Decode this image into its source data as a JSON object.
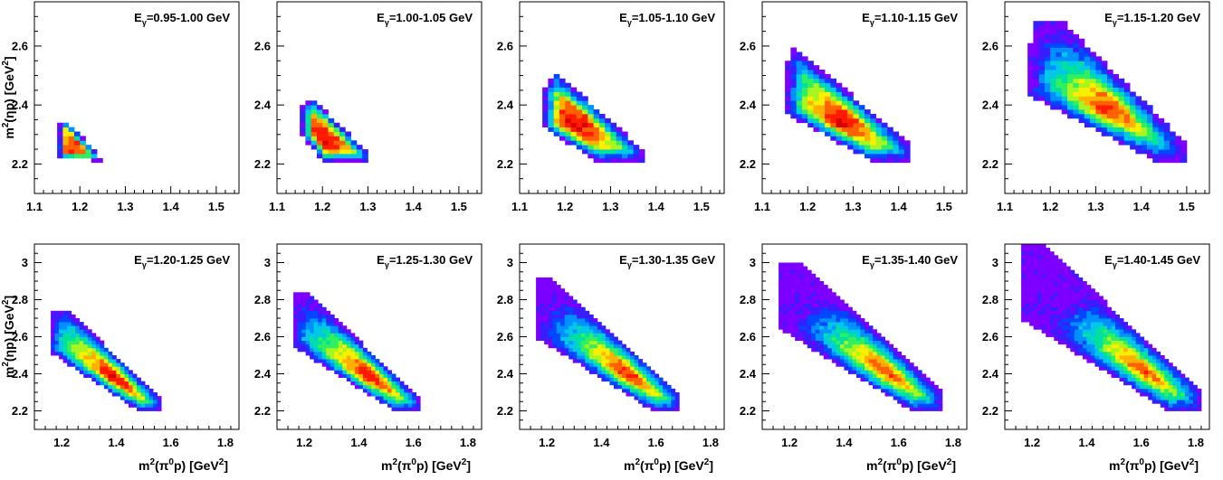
{
  "figure": {
    "colors": {
      "frame": "#000000",
      "background": "#ffffff"
    },
    "colormap": [
      "#7d00ff",
      "#3a1dff",
      "#0048ff",
      "#0090ff",
      "#00c8e6",
      "#00e0a0",
      "#30f060",
      "#a8f520",
      "#f8f000",
      "#ffb000",
      "#ff6000",
      "#ff1a00",
      "#d80000"
    ],
    "ylabel_parts": {
      "main": "m",
      "exp": "2",
      "mid": "(ηp)  [GeV",
      "unit_exp": "2",
      "end": "]"
    },
    "xlabel_parts": {
      "main": "m",
      "exp": "2",
      "mid": "(π",
      "sup0": "0",
      "mid2": "p)  [GeV",
      "unit_exp": "2",
      "end": "]"
    }
  },
  "chart_data": [
    {
      "type": "heatmap",
      "title": "Eγ=0.95-1.00 GeV",
      "label_parts": {
        "E": "E",
        "sub": "γ",
        "rest": "=0.95-1.00 GeV"
      },
      "xlim": [
        1.1,
        1.55
      ],
      "ylim": [
        2.1,
        2.75
      ],
      "xticks": [
        1.1,
        1.2,
        1.3,
        1.4,
        1.5
      ],
      "xtick_labels": [
        "1.1",
        "1.2",
        "1.3",
        "1.4",
        "1.5"
      ],
      "yticks": [
        2.2,
        2.4,
        2.6
      ],
      "ytick_labels": [
        "2.2",
        "2.4",
        "2.6"
      ],
      "x_axis_title": false,
      "y_axis_title": true,
      "region": {
        "peak_x": 1.165,
        "peak_y": 2.235,
        "bin_x": 0.0125,
        "bin_y": 0.015,
        "polygon": [
          [
            1.155,
            2.22
          ],
          [
            1.245,
            2.21
          ],
          [
            1.245,
            2.225
          ],
          [
            1.175,
            2.34
          ],
          [
            1.155,
            2.34
          ]
        ]
      }
    },
    {
      "type": "heatmap",
      "title": "Eγ=1.00-1.05 GeV",
      "label_parts": {
        "E": "E",
        "sub": "γ",
        "rest": "=1.00-1.05 GeV"
      },
      "xlim": [
        1.1,
        1.55
      ],
      "ylim": [
        2.1,
        2.75
      ],
      "xticks": [
        1.1,
        1.2,
        1.3,
        1.4,
        1.5
      ],
      "xtick_labels": [
        "1.1",
        "1.2",
        "1.3",
        "1.4",
        "1.5"
      ],
      "yticks": [
        2.2,
        2.4,
        2.6
      ],
      "ytick_labels": [
        "2.2",
        "2.4",
        "2.6"
      ],
      "x_axis_title": false,
      "y_axis_title": false,
      "region": {
        "peak_x": 1.2,
        "peak_y": 2.28,
        "bin_x": 0.0125,
        "bin_y": 0.015,
        "polygon": [
          [
            1.155,
            2.4
          ],
          [
            1.18,
            2.42
          ],
          [
            1.3,
            2.24
          ],
          [
            1.3,
            2.21
          ],
          [
            1.2,
            2.21
          ],
          [
            1.155,
            2.3
          ]
        ]
      }
    },
    {
      "type": "heatmap",
      "title": "Eγ=1.05-1.10 GeV",
      "label_parts": {
        "E": "E",
        "sub": "γ",
        "rest": "=1.05-1.10 GeV"
      },
      "xlim": [
        1.1,
        1.55
      ],
      "ylim": [
        2.1,
        2.75
      ],
      "xticks": [
        1.1,
        1.2,
        1.3,
        1.4,
        1.5
      ],
      "xtick_labels": [
        "1.1",
        "1.2",
        "1.3",
        "1.4",
        "1.5"
      ],
      "yticks": [
        2.2,
        2.4,
        2.6
      ],
      "ytick_labels": [
        "2.2",
        "2.4",
        "2.6"
      ],
      "x_axis_title": false,
      "y_axis_title": false,
      "region": {
        "peak_x": 1.22,
        "peak_y": 2.33,
        "bin_x": 0.0125,
        "bin_y": 0.015,
        "polygon": [
          [
            1.155,
            2.45
          ],
          [
            1.18,
            2.51
          ],
          [
            1.37,
            2.25
          ],
          [
            1.37,
            2.21
          ],
          [
            1.27,
            2.21
          ],
          [
            1.155,
            2.32
          ]
        ]
      }
    },
    {
      "type": "heatmap",
      "title": "Eγ=1.10-1.15 GeV",
      "label_parts": {
        "E": "E",
        "sub": "γ",
        "rest": "=1.10-1.15 GeV"
      },
      "xlim": [
        1.1,
        1.55
      ],
      "ylim": [
        2.1,
        2.75
      ],
      "xticks": [
        1.1,
        1.2,
        1.3,
        1.4,
        1.5
      ],
      "xtick_labels": [
        "1.1",
        "1.2",
        "1.3",
        "1.4",
        "1.5"
      ],
      "yticks": [
        2.2,
        2.4,
        2.6
      ],
      "ytick_labels": [
        "2.2",
        "2.4",
        "2.6"
      ],
      "x_axis_title": false,
      "y_axis_title": false,
      "region": {
        "peak_x": 1.27,
        "peak_y": 2.33,
        "bin_x": 0.0125,
        "bin_y": 0.015,
        "polygon": [
          [
            1.155,
            2.55
          ],
          [
            1.17,
            2.6
          ],
          [
            1.43,
            2.26
          ],
          [
            1.43,
            2.21
          ],
          [
            1.34,
            2.21
          ],
          [
            1.155,
            2.37
          ]
        ]
      }
    },
    {
      "type": "heatmap",
      "title": "Eγ=1.15-1.20 GeV",
      "label_parts": {
        "E": "E",
        "sub": "γ",
        "rest": "=1.15-1.20 GeV"
      },
      "xlim": [
        1.1,
        1.55
      ],
      "ylim": [
        2.1,
        2.75
      ],
      "xticks": [
        1.1,
        1.2,
        1.3,
        1.4,
        1.5
      ],
      "xtick_labels": [
        "1.1",
        "1.2",
        "1.3",
        "1.4",
        "1.5"
      ],
      "yticks": [
        2.2,
        2.4,
        2.6
      ],
      "ytick_labels": [
        "2.2",
        "2.4",
        "2.6"
      ],
      "x_axis_title": false,
      "y_axis_title": false,
      "region": {
        "peak_x": 1.32,
        "peak_y": 2.35,
        "bin_x": 0.0125,
        "bin_y": 0.015,
        "polygon": [
          [
            1.155,
            2.6
          ],
          [
            1.165,
            2.68
          ],
          [
            1.23,
            2.68
          ],
          [
            1.5,
            2.27
          ],
          [
            1.5,
            2.21
          ],
          [
            1.43,
            2.21
          ],
          [
            1.155,
            2.43
          ]
        ]
      }
    },
    {
      "type": "heatmap",
      "title": "Eγ=1.20-1.25 GeV",
      "label_parts": {
        "E": "E",
        "sub": "γ",
        "rest": "=1.20-1.25 GeV"
      },
      "xlim": [
        1.1,
        1.85
      ],
      "ylim": [
        2.1,
        3.1
      ],
      "xticks": [
        1.2,
        1.4,
        1.6,
        1.8
      ],
      "xtick_labels": [
        "1.2",
        "1.4",
        "1.6",
        "1.8"
      ],
      "yticks": [
        2.2,
        2.4,
        2.6,
        2.8,
        3.0
      ],
      "ytick_labels": [
        "2.2",
        "2.4",
        "2.6",
        "2.8",
        "3"
      ],
      "x_axis_title": true,
      "y_axis_title": true,
      "region": {
        "peak_x": 1.37,
        "peak_y": 2.35,
        "bin_x": 0.015,
        "bin_y": 0.02,
        "polygon": [
          [
            1.155,
            2.62
          ],
          [
            1.165,
            2.75
          ],
          [
            1.22,
            2.75
          ],
          [
            1.56,
            2.27
          ],
          [
            1.56,
            2.2
          ],
          [
            1.48,
            2.2
          ],
          [
            1.155,
            2.52
          ]
        ]
      }
    },
    {
      "type": "heatmap",
      "title": "Eγ=1.25-1.30 GeV",
      "label_parts": {
        "E": "E",
        "sub": "γ",
        "rest": "=1.25-1.30 GeV"
      },
      "xlim": [
        1.1,
        1.85
      ],
      "ylim": [
        2.1,
        3.1
      ],
      "xticks": [
        1.2,
        1.4,
        1.6,
        1.8
      ],
      "xtick_labels": [
        "1.2",
        "1.4",
        "1.6",
        "1.8"
      ],
      "yticks": [
        2.2,
        2.4,
        2.6,
        2.8,
        3.0
      ],
      "ytick_labels": [
        "2.2",
        "2.4",
        "2.6",
        "2.8",
        "3"
      ],
      "x_axis_title": true,
      "y_axis_title": false,
      "region": {
        "peak_x": 1.42,
        "peak_y": 2.36,
        "bin_x": 0.015,
        "bin_y": 0.02,
        "polygon": [
          [
            1.155,
            2.68
          ],
          [
            1.165,
            2.84
          ],
          [
            1.21,
            2.84
          ],
          [
            1.62,
            2.28
          ],
          [
            1.62,
            2.2
          ],
          [
            1.53,
            2.2
          ],
          [
            1.155,
            2.55
          ]
        ]
      }
    },
    {
      "type": "heatmap",
      "title": "Eγ=1.30-1.35 GeV",
      "label_parts": {
        "E": "E",
        "sub": "γ",
        "rest": "=1.30-1.35 GeV"
      },
      "xlim": [
        1.1,
        1.85
      ],
      "ylim": [
        2.1,
        3.1
      ],
      "xticks": [
        1.2,
        1.4,
        1.6,
        1.8
      ],
      "xtick_labels": [
        "1.2",
        "1.4",
        "1.6",
        "1.8"
      ],
      "yticks": [
        2.2,
        2.4,
        2.6,
        2.8,
        3.0
      ],
      "ytick_labels": [
        "2.2",
        "2.4",
        "2.6",
        "2.8",
        "3"
      ],
      "x_axis_title": true,
      "y_axis_title": false,
      "region": {
        "peak_x": 1.48,
        "peak_y": 2.36,
        "bin_x": 0.015,
        "bin_y": 0.02,
        "polygon": [
          [
            1.155,
            2.72
          ],
          [
            1.165,
            2.92
          ],
          [
            1.22,
            2.92
          ],
          [
            1.69,
            2.29
          ],
          [
            1.69,
            2.2
          ],
          [
            1.59,
            2.2
          ],
          [
            1.155,
            2.6
          ]
        ]
      }
    },
    {
      "type": "heatmap",
      "title": "Eγ=1.35-1.40 GeV",
      "label_parts": {
        "E": "E",
        "sub": "γ",
        "rest": "=1.35-1.40 GeV"
      },
      "xlim": [
        1.1,
        1.85
      ],
      "ylim": [
        2.1,
        3.1
      ],
      "xticks": [
        1.2,
        1.4,
        1.6,
        1.8
      ],
      "xtick_labels": [
        "1.2",
        "1.4",
        "1.6",
        "1.8"
      ],
      "yticks": [
        2.2,
        2.4,
        2.6,
        2.8,
        3.0
      ],
      "ytick_labels": [
        "2.2",
        "2.4",
        "2.6",
        "2.8",
        "3"
      ],
      "x_axis_title": true,
      "y_axis_title": false,
      "region": {
        "peak_x": 1.53,
        "peak_y": 2.36,
        "bin_x": 0.015,
        "bin_y": 0.02,
        "polygon": [
          [
            1.155,
            2.78
          ],
          [
            1.165,
            3.01
          ],
          [
            1.23,
            3.01
          ],
          [
            1.76,
            2.3
          ],
          [
            1.76,
            2.2
          ],
          [
            1.65,
            2.2
          ],
          [
            1.155,
            2.65
          ]
        ]
      }
    },
    {
      "type": "heatmap",
      "title": "Eγ=1.40-1.45 GeV",
      "label_parts": {
        "E": "E",
        "sub": "γ",
        "rest": "=1.40-1.45 GeV"
      },
      "xlim": [
        1.1,
        1.85
      ],
      "ylim": [
        2.1,
        3.1
      ],
      "xticks": [
        1.2,
        1.4,
        1.6,
        1.8
      ],
      "xtick_labels": [
        "1.2",
        "1.4",
        "1.6",
        "1.8"
      ],
      "yticks": [
        2.2,
        2.4,
        2.6,
        2.8,
        3.0
      ],
      "ytick_labels": [
        "2.2",
        "2.4",
        "2.6",
        "2.8",
        "3"
      ],
      "x_axis_title": true,
      "y_axis_title": false,
      "region": {
        "peak_x": 1.58,
        "peak_y": 2.35,
        "bin_x": 0.015,
        "bin_y": 0.02,
        "polygon": [
          [
            1.155,
            2.8
          ],
          [
            1.16,
            3.1
          ],
          [
            1.24,
            3.1
          ],
          [
            1.82,
            2.31
          ],
          [
            1.82,
            2.2
          ],
          [
            1.7,
            2.2
          ],
          [
            1.155,
            2.7
          ]
        ]
      }
    }
  ]
}
